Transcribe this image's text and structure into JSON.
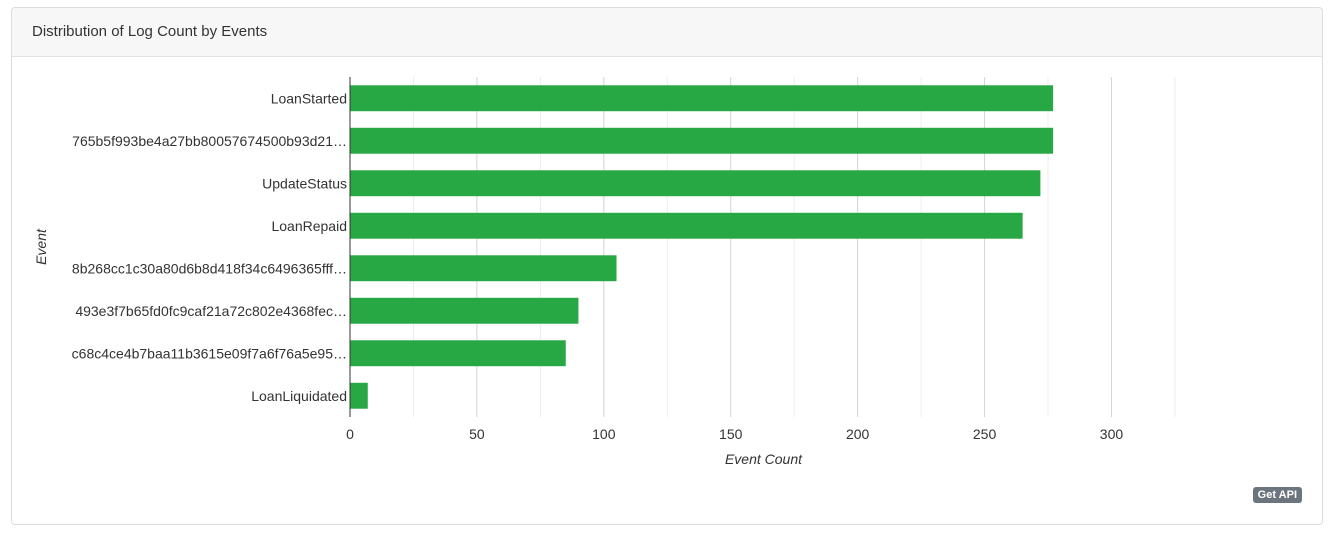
{
  "card": {
    "title": "Distribution of Log Count by Events",
    "api_button_label": "Get API"
  },
  "colors": {
    "bar": "#28a745",
    "grid": "#d0d0d0",
    "axis": "#333333",
    "text": "#333333"
  },
  "chart_data": {
    "type": "bar",
    "orientation": "horizontal",
    "title": "",
    "xlabel": "Event Count",
    "ylabel": "Event",
    "xlim": [
      0,
      340
    ],
    "x_ticks": [
      0,
      50,
      100,
      150,
      200,
      250,
      300
    ],
    "grid": true,
    "categories": [
      "LoanStarted",
      "765b5f993be4a27bb80057674500b93d21…",
      "UpdateStatus",
      "LoanRepaid",
      "8b268cc1c30a80d6b8d418f34c6496365fff…",
      "493e3f7b65fd0fc9caf21a72c802e4368fec…",
      "c68c4ce4b7baa11b3615e09f7a6f76a5e95…",
      "LoanLiquidated"
    ],
    "values": [
      277,
      277,
      272,
      265,
      105,
      90,
      85,
      7
    ]
  }
}
